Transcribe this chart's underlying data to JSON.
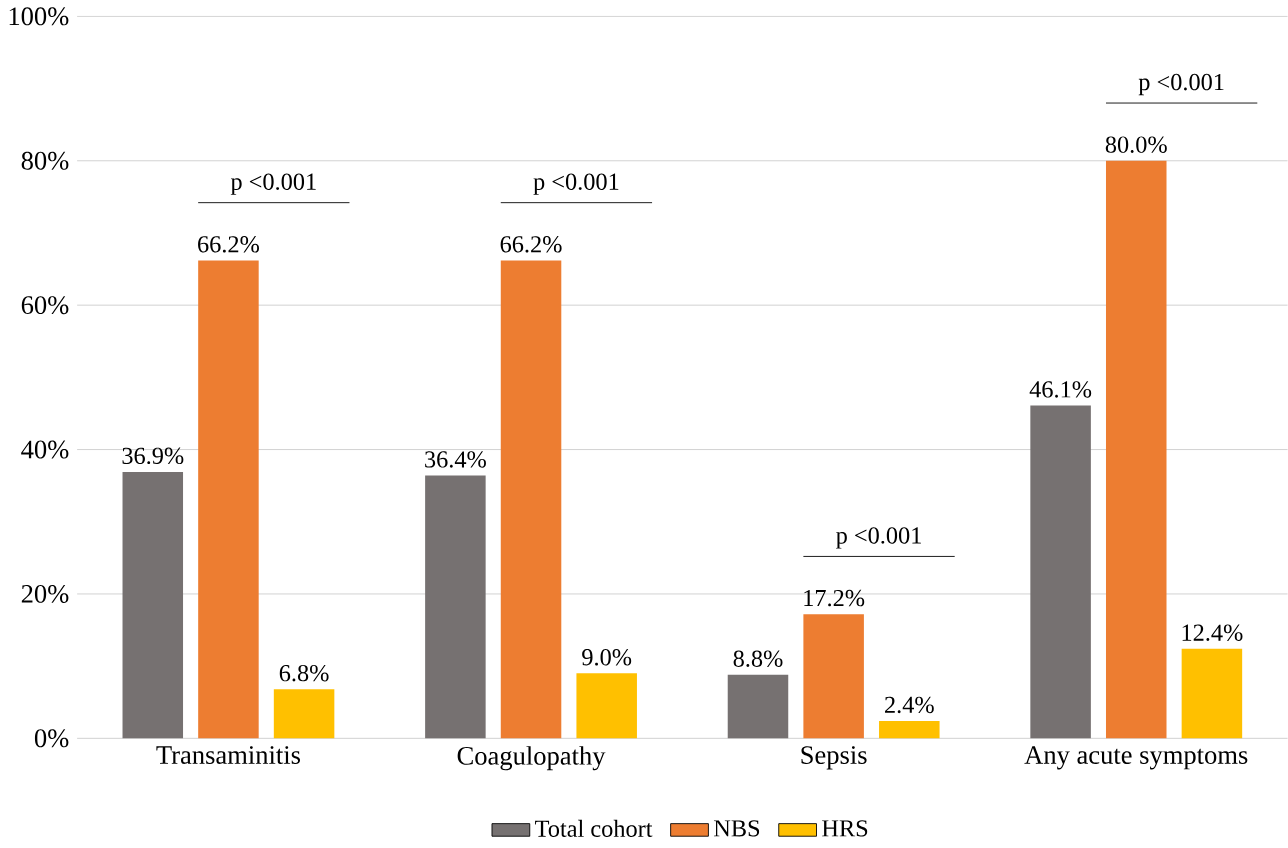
{
  "chart_data": {
    "type": "bar",
    "categories": [
      "Transaminitis",
      "Coagulopathy",
      "Sepsis",
      "Any acute symptoms"
    ],
    "series": [
      {
        "name": "Total cohort",
        "color": "#767171",
        "values": [
          36.9,
          36.4,
          8.8,
          46.1
        ],
        "value_labels": [
          "36.9%",
          "36.4%",
          "8.8%",
          "46.1%"
        ]
      },
      {
        "name": "NBS",
        "color": "#ed7d31",
        "values": [
          66.2,
          66.2,
          17.2,
          80.0
        ],
        "value_labels": [
          "66.2%",
          "66.2%",
          "17.2%",
          "80.0%"
        ]
      },
      {
        "name": "HRS",
        "color": "#ffc000",
        "values": [
          6.8,
          9.0,
          2.4,
          12.4
        ],
        "value_labels": [
          "6.8%",
          "9.0%",
          "2.4%",
          "12.4%"
        ]
      }
    ],
    "ylim": [
      0,
      100
    ],
    "yticks": [
      {
        "value": 0,
        "label": "0%"
      },
      {
        "value": 20,
        "label": "20%"
      },
      {
        "value": 40,
        "label": "40%"
      },
      {
        "value": 60,
        "label": "60%"
      },
      {
        "value": 80,
        "label": "80%"
      },
      {
        "value": 100,
        "label": "100%"
      }
    ],
    "grid": "y",
    "legend": "bottom",
    "annotations": [
      "p <0.001",
      "p <0.001",
      "p <0.001",
      "p <0.001"
    ]
  }
}
